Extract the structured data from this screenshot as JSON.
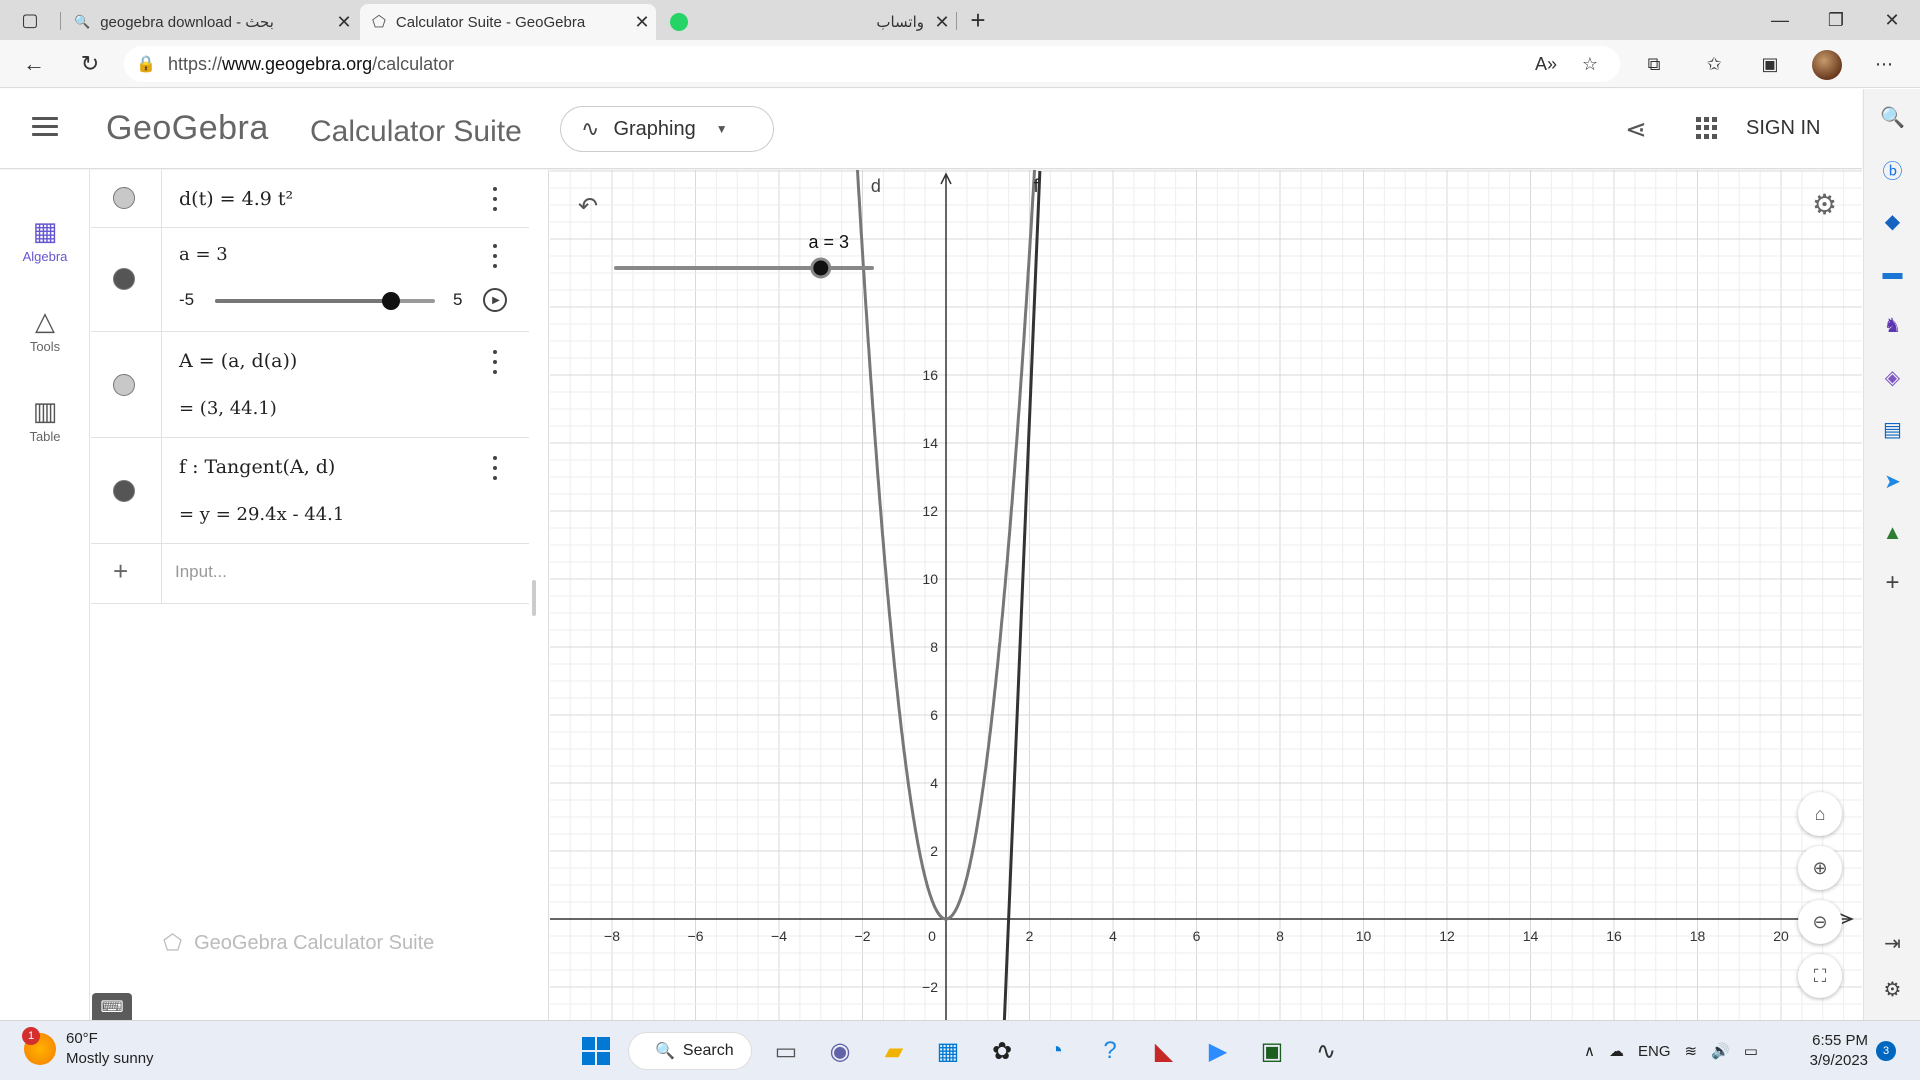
{
  "browser": {
    "tabs": [
      {
        "title": "geogebra download - بحث",
        "active": false
      },
      {
        "title": "Calculator Suite - GeoGebra",
        "active": true
      },
      {
        "title": "واتساب",
        "active": false
      }
    ],
    "new_tab_symbol": "+",
    "url_scheme": "https://",
    "url_host": "www.geogebra.org",
    "url_path": "/calculator"
  },
  "geogebra": {
    "logo": "GeoGebra",
    "suite_title": "Calculator Suite",
    "app_picker": "Graphing",
    "sign_in": "SIGN IN",
    "perspectives": {
      "algebra": "Algebra",
      "tools": "Tools",
      "table": "Table"
    },
    "algebra": {
      "rows": [
        {
          "expr": "d(t) = 4.9 t²",
          "result": ""
        },
        {
          "expr": "a = 3",
          "result": ""
        },
        {
          "expr": "A = (a, d(a))",
          "result": "= (3, 44.1)"
        },
        {
          "expr": "f : Tangent(A, d)",
          "result": "= y = 29.4x - 44.1"
        }
      ],
      "slider": {
        "min": "-5",
        "max": "5",
        "value": 3
      },
      "input_placeholder": "Input...",
      "watermark": "GeoGebra Calculator Suite"
    },
    "graphics": {
      "slider_label": "a = 3",
      "curve_labels": {
        "d": "d",
        "f": "f"
      },
      "x_ticks": [
        "−8",
        "−6",
        "−4",
        "−2",
        "0",
        "2",
        "4",
        "6",
        "8",
        "10",
        "12",
        "14",
        "16",
        "18",
        "20"
      ],
      "y_ticks": [
        "16",
        "14",
        "12",
        "10",
        "8",
        "6",
        "4",
        "2",
        "−2"
      ]
    },
    "colors": {
      "accent": "#6557d2",
      "curve_d": "#777777",
      "curve_f": "#333333"
    }
  },
  "taskbar": {
    "weather_badge": "1",
    "temperature": "60°F",
    "weather_desc": "Mostly sunny",
    "search_label": "Search",
    "language": "ENG",
    "time": "6:55 PM",
    "date": "3/9/2023",
    "notifications": "3"
  }
}
